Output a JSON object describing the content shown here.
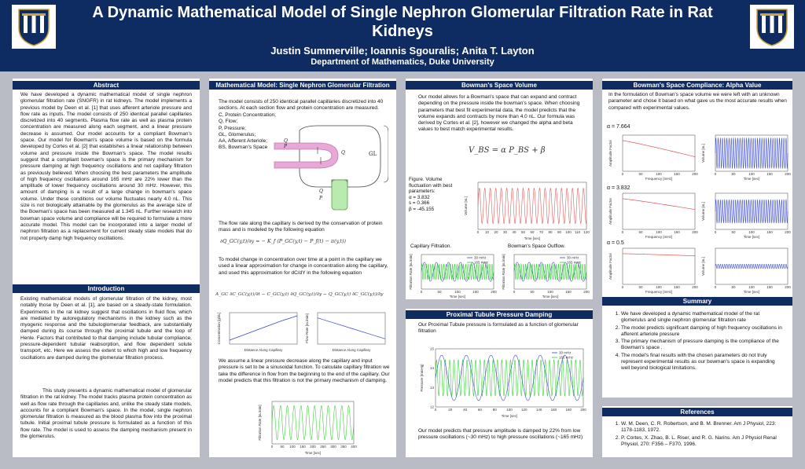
{
  "header": {
    "title": "A Dynamic Mathematical Model of Single Nephron Glomerular Filtration Rate in Rat Kidneys",
    "authors": "Justin Summerville; Ioannis Sgouralis; Anita T. Layton",
    "department": "Department of Mathematics, Duke University",
    "seal_text": "Duke University"
  },
  "abstract": {
    "heading": "Abstract",
    "text": "We have developed a dynamic mathematical model of single nephron glomerular filtration rate (SNGFR) in rat kidneys. The model implements a previous model by Deen et al. [1] that uses afferent arteriole pressure and flow rate as inputs. The model consists of 250 identical parallel capillaries discretized into 40 segments. Plasma flow rate as well as plasma protein concentration are measured along each segment, and a linear pressure decrease is assumed. Our model accounts for a compliant Bowman's space. Our model for Bowman's space volume is based on the formula developed by Cortes et al. [2] that establishes a linear relationship between volume and pressure inside the Bowman's space. The model results suggest that a compliant bowman's space is the primary mechanism for pressure damping at high frequency oscillations and not capillary filtration as previously believed. When choosing the best parameters the amplitude of high frequency oscillations around 165 mHz are 22% lower than the amplitude of lower frequency oscillations around 30 mHz. However, this amount of damping is a result of a large change in bowman's space volume. Under these conditions our volume fluctuates nearly 4.0 nL. This size is not biologically attainable by the glomerulus as the average size of the Bowman's space has been measured at 1.345 nL. Further research into bowman space volume and compliance will be required to formulate a more accurate model. This model can be incorporated into a larger model of nephron filtration as a replacement for current steady state models that do not properly damp high frequency oscillations."
  },
  "introduction": {
    "heading": "Introduction",
    "p1": "Existing mathematical models of glomerular filtration of the kidney, most notably those by Deen et al. [1], are based on a steady-state formulation. Experiments in the rat kidney suggest that oscillations in fluid flow, which are mediated by autoregulatory mechanisms in the kidney such as the myogenic response and the tubuloglomerular feedback, are substantially damped during its course through the proximal tubule and the loop of Henle. Factors that contributed to that damping include tubular compliance, pressure-dependent tubular reabsorption, and flow dependent solute transport, etc. Here we assess the extent to which high and low frequency oscillations are damped during the glomerular filtration process.",
    "p2": "This study presents a dynamic mathematical model of glomerular filtration in the rat kidney. The model tracks plasma protein concentration as well as flow rate through the capillaries and, unlike the steady state models, accounts for a compliant Bowman's space. In the model, single nephron glomerular filtration is measured as the blood plasma flow into the proximal tubule. Initial proximal tubule pressure is formulated as a function of this flow rate. The model is used to assess the damping mechanism present in the glomerulus."
  },
  "model": {
    "heading": "Mathematical Model: Single Nephron Glomerular Filtration Rate",
    "intro": "The model consists of 250 identical parallel capillaries discretized into 40 sections. At each section flow and protein concentration are measured.",
    "legend": [
      "C, Protein Concentration;",
      "Q, Flow;",
      "P, Pressure;",
      "GL, Glomerulus;",
      "AA, Afferent Arteriole;",
      "BS, Bowman's Space"
    ],
    "diagram_labels": {
      "q_aa": "Q",
      "p_aa": "P",
      "q_bs": "Q",
      "q_p": "Q",
      "p_p": "P",
      "gl": "GL"
    },
    "flow_text": "The flow rate along the capillary is derived by the conservation of protein mass and is modeled by the following equation",
    "eq1": "∂Q_GC(y,t)/∂y = − K_f (P_GC(y,t) − P_f(t) − π(y,t))",
    "conc_text": "To model change in concentration over time at a point in the capillary we used a linear approximation for change in concentration along the capillary, and used this approximation for dC/dY in the following equation",
    "eq2": "A_GC ∂C_GC(y,t)/∂t − C_GC(y,t) ∂Q_GC(y,t)/∂y − Q_GC(y,t) ∂C_GC(y,t)/∂y",
    "pressure_text": "We assume a linear pressure decrease along the capillary and input pressure is set to be a sinusoidal function. To calculate capillary filtration we take the difference in flow from the beginning to the end of the capillary. Our model predicts that this filtration is not the primary mechanism of damping."
  },
  "bowman_volume": {
    "heading": "Bowman's Space Volume",
    "text": "Our model allows for a Bowman's space that can expand and contract depending on the pressure inside the bowman's space. When choosing parameters that best fit experimental data, the model predicts that the volume expands and contracts by more than 4.0 nL. Our formula was derived by Cortes et al. [2], however we changed the alpha and beta values to best match experimental results.",
    "equation": "V_BS = α P_BS + β",
    "figure_caption": [
      "Figure. Volume",
      "fluctuation with best",
      "parameters:",
      "α = 3.832",
      "s = 0.366",
      "β = -45.155"
    ],
    "capillary_label": "Capillary Filtration.",
    "outflow_label": "Bowman's Space Outflow."
  },
  "proximal": {
    "heading": "Proximal Tubule Pressure Damping",
    "text": "Our Proximal Tubule pressure is formulated as a function of glomerular filtration",
    "conclusion": "Our model predicts that pressure amplitude is damped by 22% from low pressure oscillations (~30 mHz) to high pressure oscillations (~165 mHz)"
  },
  "compliance": {
    "heading": "Bowman's Space Compliance: Alpha Value",
    "text": "In the formulation of Bowman's space volume we were left with an unknown parameter and chose it based on what gave us the most accurate results when compared with experimental values.",
    "alpha_labels": [
      "α = 7.664",
      "α = 3.832",
      "α = 0.5"
    ]
  },
  "summary": {
    "heading": "Summary",
    "items": [
      "We have developed a dynamic mathematical model of the rat glomerulus and single nephron glomerular filtration rate",
      "The model predicts significant damping of high frequency oscillations in afferent arteriole pressure",
      "The primary mechanism of pressure damping is the compliance of the Bowman's space .",
      "The model's final results with the chosen parameters do not truly represent experimental results as our bowman's space is expanding well beyond biological limitations."
    ]
  },
  "references": {
    "heading": "References",
    "items": [
      "W. M. Deen, C. R. Robertson, and B. M. Brenner. Am J Physiol, 223: 1178-1183, 1972.",
      "P. Cortes, X. Zhao, B. L. Riser, and R. G. Narins. Am J Physiol Renal Physiol, 270: F356 – F370, 1996."
    ]
  },
  "chart_data": [
    {
      "id": "concentration",
      "type": "line",
      "xlabel": "Distance Along Capillary",
      "ylabel": "Concentration [g/dL]",
      "x": [
        0,
        10,
        20,
        30,
        40
      ],
      "y": [
        5.5,
        6.3,
        7.1,
        7.9,
        8.6
      ],
      "ylim": [
        5,
        9
      ]
    },
    {
      "id": "flow_rate",
      "type": "line",
      "xlabel": "Distance Along Capillary",
      "ylabel": "Flow Rate [nL/min]",
      "x": [
        0,
        10,
        20,
        30,
        40
      ],
      "y": [
        2.0,
        1.8,
        1.6,
        1.4,
        1.2
      ],
      "ylim": [
        1,
        2.2
      ]
    },
    {
      "id": "filtration_rate",
      "type": "line",
      "xlabel": "Time [sec]",
      "ylabel": "Filtration Rate [nL/min]",
      "xlim": [
        0,
        400
      ],
      "xticks": [
        0,
        50,
        100,
        150,
        200,
        250,
        300,
        350,
        400
      ],
      "amplitude_range": [
        20,
        40
      ],
      "frequency_hz": 0.03
    },
    {
      "id": "volume",
      "type": "line",
      "xlabel": "Time [sec]",
      "ylabel": "Volume [nL]",
      "xlim": [
        0,
        120
      ],
      "xticks": [
        0,
        10,
        20,
        30,
        40,
        50,
        60,
        70,
        80,
        90,
        100,
        110,
        120
      ],
      "ylim": [
        -3,
        3
      ],
      "amplitude": 2.1
    },
    {
      "id": "capillary_filtration",
      "type": "line",
      "xlabel": "Time [sec]",
      "ylabel": "Filtration Rate [nL/min]",
      "xticks": [
        0,
        50,
        100,
        150,
        200
      ],
      "series": [
        {
          "name": "30 mHz"
        },
        {
          "name": "165 mHz"
        }
      ]
    },
    {
      "id": "bowman_outflow",
      "type": "line",
      "xlabel": "Time [sec]",
      "ylabel": "Filtration Rate [nL/min]",
      "xticks": [
        0,
        50,
        100,
        150,
        200
      ],
      "series": [
        {
          "name": "30 mHz"
        },
        {
          "name": "165 mHz"
        }
      ]
    },
    {
      "id": "proximal_pressure",
      "type": "line",
      "xlabel": "Time [sec]",
      "ylabel": "Pressure [mmHg]",
      "xlim": [
        0,
        200
      ],
      "xticks": [
        0,
        20,
        40,
        60,
        80,
        100,
        120,
        140,
        160,
        180,
        200
      ],
      "yticks": [
        12,
        13,
        14,
        15
      ],
      "series": [
        {
          "name": "30 mHz",
          "color": "#3344cc"
        },
        {
          "name": "165 mHz",
          "color": "#33cc33"
        }
      ]
    },
    {
      "id": "alpha_amplitude",
      "type": "line",
      "xlabel": "Frequency [mHz]",
      "ylabel": "Amplitude Factor",
      "xticks": [
        0,
        50,
        100,
        150,
        200
      ],
      "alphas": [
        "α = 7.664",
        "α = 3.832",
        "α = 0.5"
      ]
    },
    {
      "id": "alpha_volume",
      "type": "line",
      "xlabel": "Time [sec]",
      "ylabel": "Volume [nL]",
      "xticks": [
        0,
        50,
        100,
        150,
        200
      ]
    }
  ]
}
